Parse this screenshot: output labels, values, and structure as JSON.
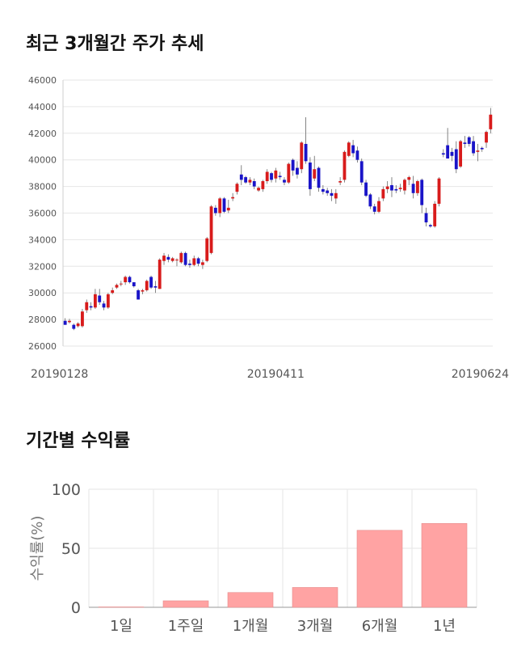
{
  "sections": {
    "price_title": "최근 3개월간 주가 추세",
    "returns_title": "기간별 수익률"
  },
  "colors": {
    "up": "#d81b1b",
    "down": "#1a14c8",
    "bar": "#ffa3a3",
    "grid": "#e6e6e6"
  },
  "chart_data": [
    {
      "type": "candlestick",
      "title": "최근 3개월간 주가 추세",
      "ylim": [
        26000,
        46000
      ],
      "yticks": [
        26000,
        28000,
        30000,
        32000,
        34000,
        36000,
        38000,
        40000,
        42000,
        44000,
        46000
      ],
      "x_tick_labels": [
        "20190128",
        "20190411",
        "20190624"
      ],
      "x_tick_index": [
        0,
        49,
        98
      ],
      "candles": [
        [
          27900,
          28100,
          27600,
          27600
        ],
        [
          27800,
          28050,
          27700,
          27900
        ],
        [
          27600,
          27700,
          27200,
          27300
        ],
        [
          27500,
          27800,
          27400,
          27700
        ],
        [
          27500,
          28800,
          27400,
          28600
        ],
        [
          28700,
          29500,
          28500,
          29300
        ],
        [
          29000,
          29300,
          28700,
          28900
        ],
        [
          28900,
          30300,
          28800,
          29900
        ],
        [
          29800,
          30300,
          29100,
          29300
        ],
        [
          29200,
          29400,
          28700,
          28900
        ],
        [
          28900,
          30000,
          28800,
          29900
        ],
        [
          30000,
          30400,
          29900,
          30200
        ],
        [
          30400,
          30700,
          30300,
          30600
        ],
        [
          30700,
          30900,
          30500,
          30700
        ],
        [
          30800,
          31300,
          30600,
          31200
        ],
        [
          31200,
          31300,
          30700,
          30800
        ],
        [
          30800,
          30800,
          30400,
          30500
        ],
        [
          30200,
          30300,
          29500,
          29500
        ],
        [
          30100,
          30300,
          29900,
          30200
        ],
        [
          30200,
          31000,
          30100,
          30900
        ],
        [
          31200,
          31300,
          30300,
          30400
        ],
        [
          30500,
          30900,
          30000,
          30400
        ],
        [
          30300,
          32600,
          30300,
          32500
        ],
        [
          32400,
          33000,
          32100,
          32800
        ],
        [
          32700,
          32900,
          32300,
          32500
        ],
        [
          32400,
          32700,
          32300,
          32600
        ],
        [
          32500,
          32600,
          32000,
          32500
        ],
        [
          32300,
          33100,
          32200,
          33000
        ],
        [
          33000,
          33100,
          32000,
          32100
        ],
        [
          32200,
          32500,
          31900,
          32100
        ],
        [
          32100,
          32800,
          32000,
          32600
        ],
        [
          32600,
          32700,
          32000,
          32200
        ],
        [
          32100,
          32500,
          31800,
          32300
        ],
        [
          32400,
          34200,
          32300,
          34100
        ],
        [
          33000,
          36600,
          32900,
          36500
        ],
        [
          36400,
          36600,
          35800,
          36000
        ],
        [
          36000,
          37200,
          35700,
          37100
        ],
        [
          37100,
          37200,
          36000,
          36100
        ],
        [
          36200,
          37000,
          36000,
          36400
        ],
        [
          37100,
          37500,
          36900,
          37200
        ],
        [
          37600,
          38300,
          37400,
          38200
        ],
        [
          38900,
          39600,
          38100,
          38500
        ],
        [
          38700,
          38800,
          38200,
          38300
        ],
        [
          38300,
          38700,
          38100,
          38500
        ],
        [
          38400,
          38600,
          37800,
          38000
        ],
        [
          37700,
          38000,
          37600,
          37900
        ],
        [
          37800,
          38500,
          37600,
          38400
        ],
        [
          38400,
          39300,
          38200,
          39100
        ],
        [
          39000,
          39100,
          38300,
          38500
        ],
        [
          38600,
          39400,
          38300,
          39200
        ],
        [
          38800,
          39100,
          38500,
          38700
        ],
        [
          38500,
          38700,
          38100,
          38300
        ],
        [
          38300,
          39800,
          38200,
          39700
        ],
        [
          40000,
          40100,
          38800,
          39200
        ],
        [
          39400,
          39900,
          38600,
          38900
        ],
        [
          39300,
          41400,
          39000,
          41300
        ],
        [
          41200,
          43200,
          39700,
          39900
        ],
        [
          39800,
          40200,
          37300,
          37800
        ],
        [
          38600,
          40300,
          38400,
          39300
        ],
        [
          39400,
          39500,
          37600,
          37900
        ],
        [
          37800,
          38100,
          37400,
          37600
        ],
        [
          37700,
          37900,
          37300,
          37500
        ],
        [
          37500,
          37800,
          36900,
          37300
        ],
        [
          37100,
          37800,
          36700,
          37500
        ],
        [
          38300,
          38700,
          38100,
          38400
        ],
        [
          38500,
          40700,
          38300,
          40600
        ],
        [
          40300,
          41400,
          40200,
          41300
        ],
        [
          41100,
          41500,
          40200,
          40500
        ],
        [
          40700,
          41000,
          39800,
          40000
        ],
        [
          39900,
          40100,
          38100,
          38300
        ],
        [
          38300,
          38500,
          37200,
          37300
        ],
        [
          37400,
          37500,
          36300,
          36500
        ],
        [
          36500,
          36700,
          35900,
          36100
        ],
        [
          36100,
          37200,
          36000,
          36900
        ],
        [
          37100,
          38000,
          36900,
          37800
        ],
        [
          37800,
          38400,
          37500,
          38000
        ],
        [
          38100,
          38700,
          37200,
          37700
        ],
        [
          37800,
          38100,
          37500,
          37700
        ],
        [
          37800,
          38200,
          37600,
          37900
        ],
        [
          37700,
          38600,
          37400,
          38500
        ],
        [
          38500,
          38800,
          38100,
          38700
        ],
        [
          38200,
          38800,
          37100,
          37500
        ],
        [
          37500,
          38500,
          37300,
          38400
        ],
        [
          38500,
          38600,
          36000,
          36600
        ],
        [
          36000,
          36400,
          35000,
          35300
        ],
        [
          35100,
          35200,
          34900,
          35000
        ],
        [
          35000,
          36900,
          34900,
          36700
        ],
        [
          36700,
          38700,
          36500,
          38600
        ],
        [
          40500,
          40800,
          40200,
          40400
        ],
        [
          41100,
          42400,
          40300,
          40100
        ],
        [
          40600,
          40900,
          39900,
          40300
        ],
        [
          40800,
          41400,
          39000,
          39300
        ],
        [
          39500,
          41500,
          39400,
          41400
        ],
        [
          41300,
          41800,
          40900,
          41200
        ],
        [
          41700,
          41800,
          41000,
          41200
        ],
        [
          41400,
          41800,
          40300,
          40500
        ],
        [
          40600,
          41200,
          39900,
          40700
        ],
        [
          40900,
          41000,
          40600,
          40800
        ],
        [
          41300,
          42200,
          40900,
          42100
        ],
        [
          42300,
          43900,
          42000,
          43400
        ]
      ]
    },
    {
      "type": "bar",
      "title": "기간별 수익률",
      "ylabel": "수익률(%)",
      "ylim": [
        0,
        100
      ],
      "yticks": [
        0,
        50,
        100
      ],
      "categories": [
        "1일",
        "1주일",
        "1개월",
        "3개월",
        "6개월",
        "1년"
      ],
      "values": [
        0.3,
        5.5,
        12.5,
        16.8,
        65.2,
        71.0
      ]
    }
  ]
}
